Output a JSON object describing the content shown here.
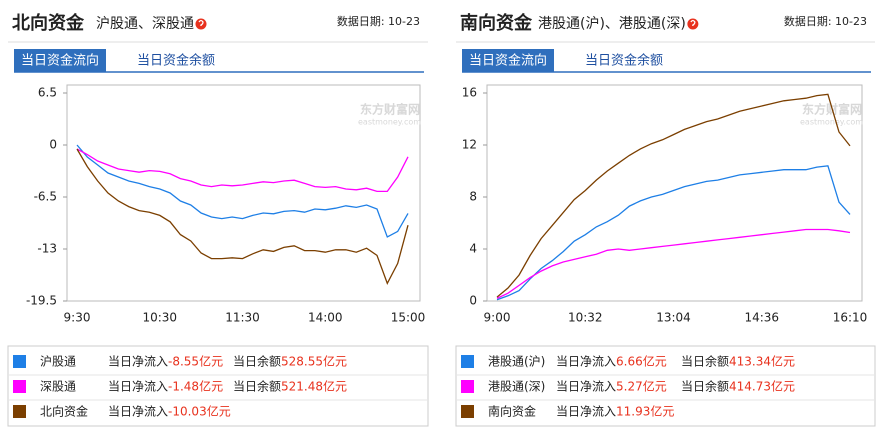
{
  "chart_data": [
    {
      "type": "line",
      "title": "北向资金",
      "subtitle": "沪股通、深股通",
      "date_label": "数据日期: 10-23",
      "tabs": [
        "当日资金流向",
        "当日资金余额"
      ],
      "watermark": "东方财富网",
      "watermark_sub": "eastmoney.com",
      "categories": [
        "9:30",
        null,
        null,
        null,
        null,
        null,
        null,
        null,
        "10:30",
        null,
        null,
        null,
        null,
        null,
        null,
        null,
        "11:30",
        null,
        null,
        null,
        null,
        null,
        null,
        null,
        "14:00",
        null,
        null,
        null,
        null,
        null,
        null,
        null,
        "15:00"
      ],
      "ylim": [
        -19.5,
        6.5
      ],
      "yticks": [
        6.5,
        0,
        -6.5,
        -13,
        -19.5
      ],
      "grid": false,
      "series": [
        {
          "name": "沪股通",
          "color": "#1e7fe6",
          "values": [
            0,
            -1.5,
            -2.5,
            -3.5,
            -4,
            -4.5,
            -4.8,
            -5.2,
            -5.5,
            -6,
            -7,
            -7.5,
            -8.5,
            -9,
            -9.2,
            -9,
            -9.2,
            -8.8,
            -8.5,
            -8.6,
            -8.3,
            -8.2,
            -8.4,
            -8.0,
            -8.1,
            -7.9,
            -7.6,
            -7.8,
            -7.5,
            -8.0,
            -11.5,
            -10.8,
            -8.55
          ]
        },
        {
          "name": "深股通",
          "color": "#ff00ff",
          "values": [
            -0.5,
            -1.2,
            -2,
            -2.5,
            -3,
            -3.2,
            -3.4,
            -3.2,
            -3.3,
            -3.6,
            -4.2,
            -4.5,
            -5,
            -5.2,
            -5,
            -5.1,
            -5,
            -4.8,
            -4.6,
            -4.7,
            -4.5,
            -4.4,
            -4.8,
            -5.2,
            -5.3,
            -5.2,
            -5.5,
            -5.6,
            -5.4,
            -5.8,
            -5.8,
            -4,
            -1.48
          ]
        },
        {
          "name": "北向资金",
          "color": "#7b3f00",
          "values": [
            -0.5,
            -2.7,
            -4.5,
            -6,
            -7,
            -7.7,
            -8.2,
            -8.4,
            -8.8,
            -9.6,
            -11.2,
            -12,
            -13.5,
            -14.2,
            -14.2,
            -14.1,
            -14.2,
            -13.6,
            -13.1,
            -13.3,
            -12.8,
            -12.6,
            -13.2,
            -13.2,
            -13.4,
            -13.1,
            -13.1,
            -13.4,
            -12.9,
            -13.8,
            -17.3,
            -14.8,
            -10.03
          ]
        }
      ],
      "legend_details": [
        {
          "net_label": "当日净流入",
          "net": "-8.55亿元",
          "balance_label": "当日余额",
          "balance": "528.55亿元"
        },
        {
          "net_label": "当日净流入",
          "net": "-1.48亿元",
          "balance_label": "当日余额",
          "balance": "521.48亿元"
        },
        {
          "net_label": "当日净流入",
          "net": "-10.03亿元"
        }
      ]
    },
    {
      "type": "line",
      "title": "南向资金",
      "subtitle": "港股通(沪)、港股通(深)",
      "date_label": "数据日期: 10-23",
      "tabs": [
        "当日资金流向",
        "当日资金余额"
      ],
      "watermark": "东方财富网",
      "watermark_sub": "eastmoney.com",
      "categories": [
        "9:00",
        null,
        null,
        null,
        null,
        null,
        null,
        null,
        "10:32",
        null,
        null,
        null,
        null,
        null,
        null,
        null,
        "13:04",
        null,
        null,
        null,
        null,
        null,
        null,
        null,
        "14:36",
        null,
        null,
        null,
        null,
        null,
        null,
        null,
        "16:10"
      ],
      "ylim": [
        0,
        16
      ],
      "yticks": [
        16,
        12,
        8,
        4,
        0
      ],
      "grid": false,
      "series": [
        {
          "name": "港股通(沪)",
          "color": "#1e7fe6",
          "values": [
            0.1,
            0.4,
            0.8,
            1.7,
            2.5,
            3.1,
            3.8,
            4.6,
            5.1,
            5.7,
            6.1,
            6.6,
            7.3,
            7.7,
            8,
            8.2,
            8.5,
            8.8,
            9,
            9.2,
            9.3,
            9.5,
            9.7,
            9.8,
            9.9,
            10,
            10.1,
            10.1,
            10.1,
            10.3,
            10.4,
            7.6,
            6.66
          ]
        },
        {
          "name": "港股通(深)",
          "color": "#ff00ff",
          "values": [
            0.2,
            0.6,
            1.2,
            1.8,
            2.3,
            2.7,
            3,
            3.2,
            3.4,
            3.6,
            3.9,
            4,
            3.9,
            4,
            4.1,
            4.2,
            4.3,
            4.4,
            4.5,
            4.6,
            4.7,
            4.8,
            4.9,
            5,
            5.1,
            5.2,
            5.3,
            5.4,
            5.5,
            5.5,
            5.5,
            5.4,
            5.27
          ]
        },
        {
          "name": "南向资金",
          "color": "#7b3f00",
          "values": [
            0.3,
            1,
            2,
            3.5,
            4.8,
            5.8,
            6.8,
            7.8,
            8.5,
            9.3,
            10,
            10.6,
            11.2,
            11.7,
            12.1,
            12.4,
            12.8,
            13.2,
            13.5,
            13.8,
            14,
            14.3,
            14.6,
            14.8,
            15,
            15.2,
            15.4,
            15.5,
            15.6,
            15.8,
            15.9,
            13,
            11.93
          ]
        }
      ],
      "legend_details": [
        {
          "net_label": "当日净流入",
          "net": "6.66亿元",
          "balance_label": "当日余额",
          "balance": "413.34亿元"
        },
        {
          "net_label": "当日净流入",
          "net": "5.27亿元",
          "balance_label": "当日余额",
          "balance": "414.73亿元"
        },
        {
          "net_label": "当日净流入",
          "net": "11.93亿元"
        }
      ]
    }
  ]
}
